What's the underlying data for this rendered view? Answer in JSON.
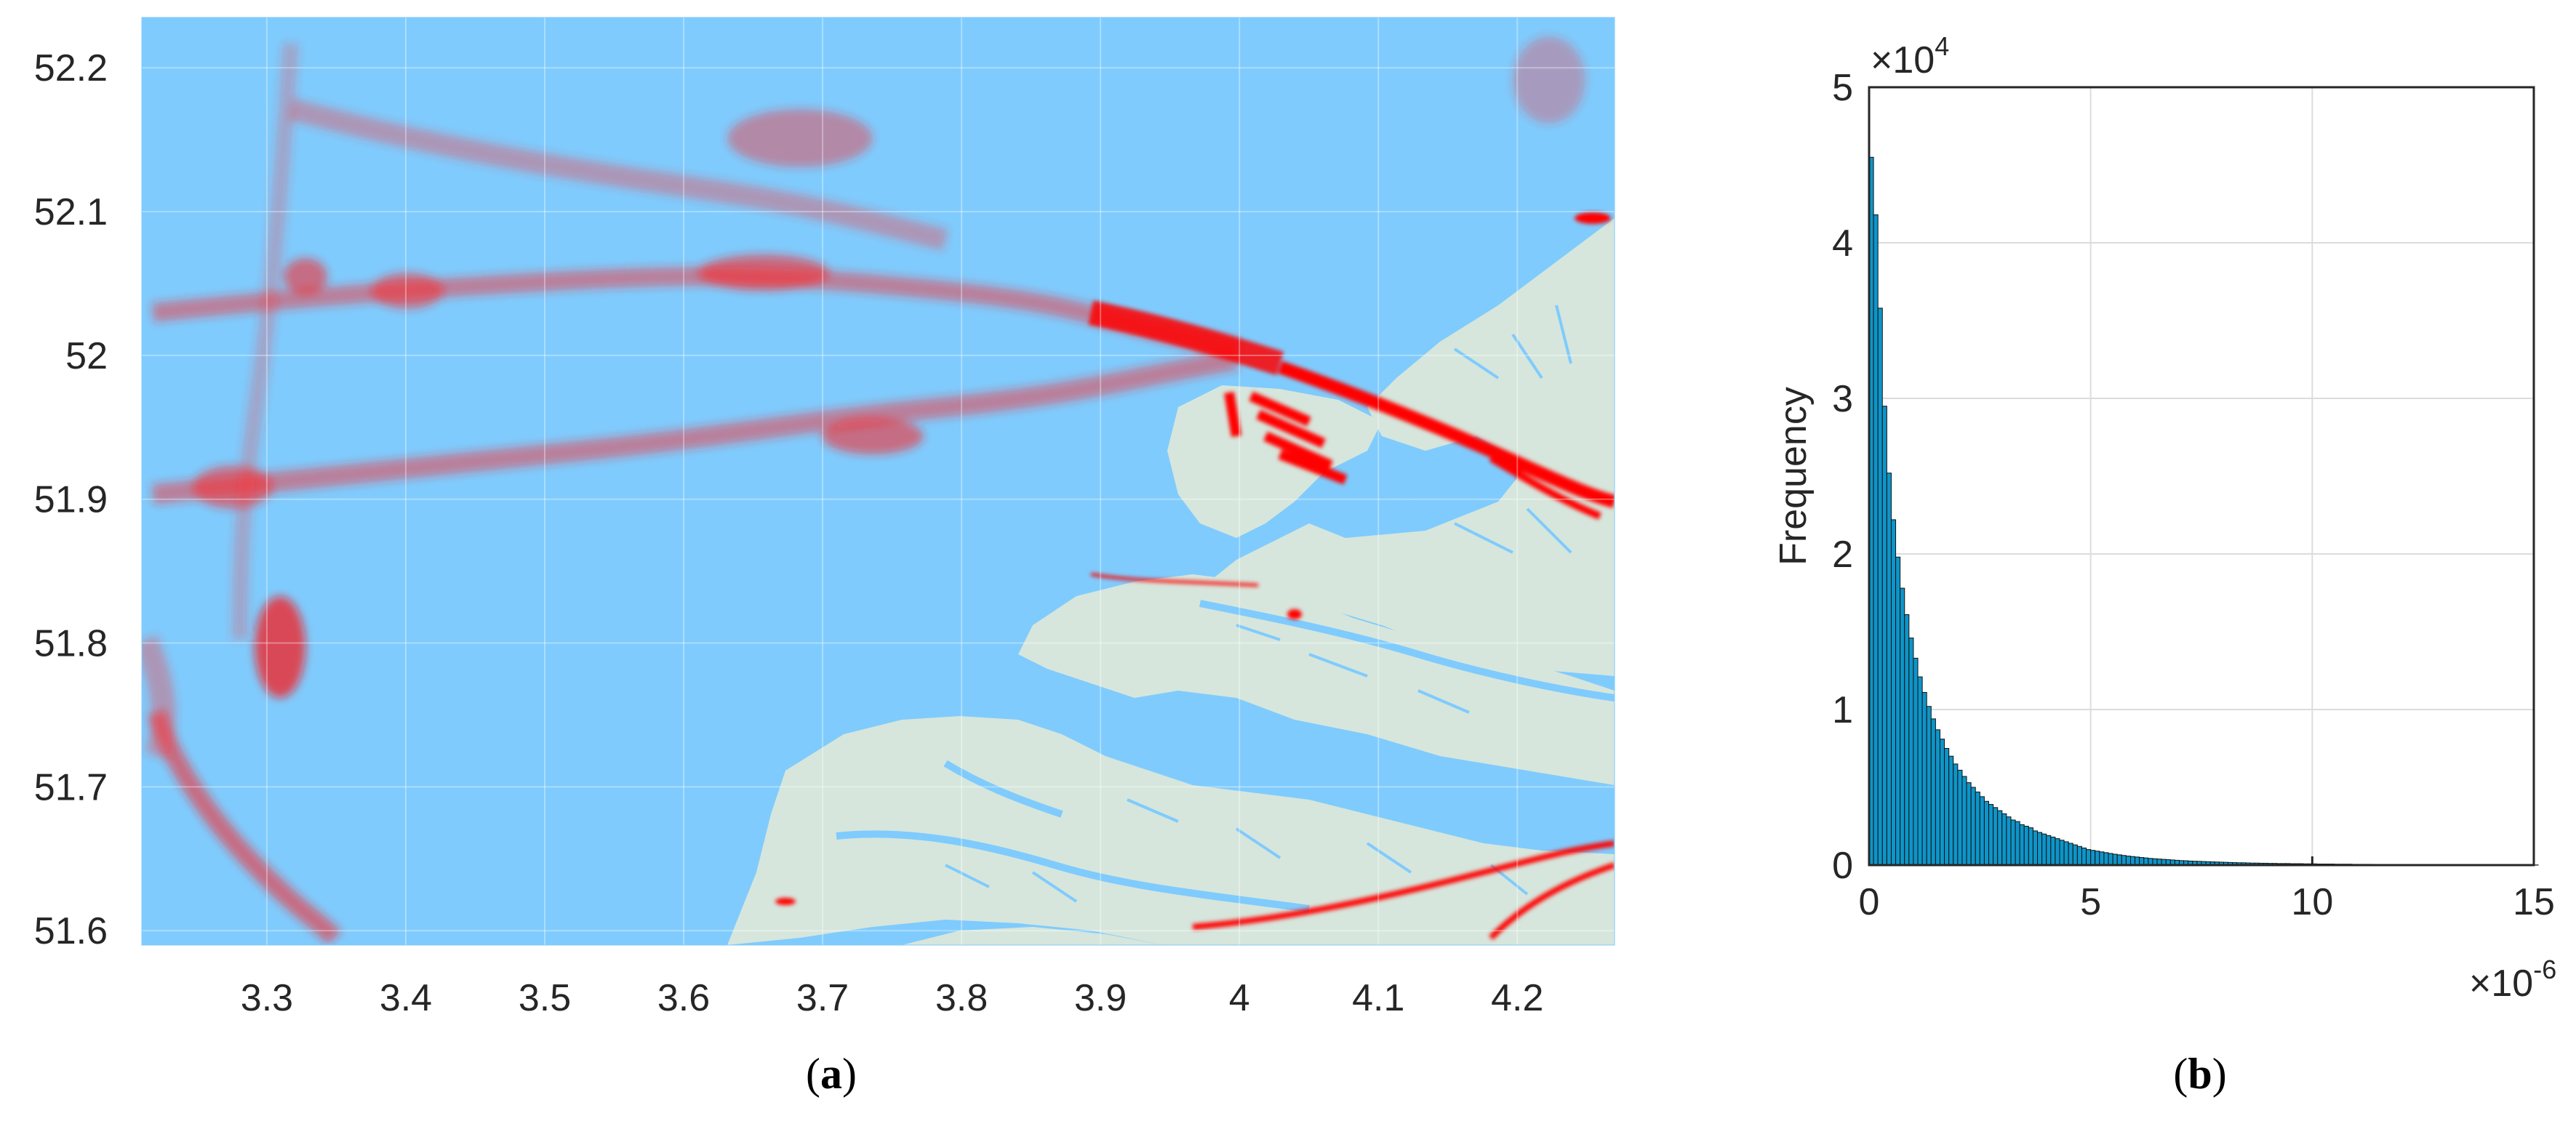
{
  "chart_data": [
    {
      "type": "scatter",
      "title": "",
      "xlabel": "",
      "ylabel": "",
      "xlim": [
        3.21,
        4.27
      ],
      "ylim": [
        51.59,
        52.235
      ],
      "xticks": [
        "3.3",
        "3.4",
        "3.5",
        "3.6",
        "3.7",
        "3.8",
        "3.9",
        "4",
        "4.1",
        "4.2"
      ],
      "yticks": [
        "52.2",
        "52.1",
        "52",
        "51.9",
        "51.8",
        "51.7",
        "51.6"
      ],
      "grid": true,
      "background_color": "#7fcbfd",
      "land_color": "#d6e6dc",
      "point_color": "#ff0000",
      "caption": "(a)",
      "description_series": [
        {
          "points": [
            [
              3.24,
              51.74
            ],
            [
              3.27,
              51.68
            ],
            [
              3.31,
              51.65
            ],
            [
              3.35,
              51.62
            ],
            [
              3.38,
              51.6
            ],
            [
              3.22,
              51.72
            ]
          ]
        },
        {
          "points": [
            [
              3.33,
              51.8
            ],
            [
              3.32,
              51.79
            ],
            [
              3.35,
              51.82
            ],
            [
              3.34,
              51.78
            ]
          ]
        },
        {
          "points": [
            [
              3.3,
              51.91
            ],
            [
              3.4,
              51.92
            ],
            [
              3.5,
              51.93
            ],
            [
              3.6,
              51.94
            ],
            [
              3.7,
              51.96
            ],
            [
              3.8,
              51.97
            ],
            [
              3.9,
              51.99
            ],
            [
              4.0,
              52.0
            ]
          ]
        },
        {
          "points": [
            [
              3.25,
              52.06
            ],
            [
              3.4,
              52.05
            ],
            [
              3.55,
              52.06
            ],
            [
              3.7,
              52.06
            ],
            [
              3.8,
              52.05
            ],
            [
              3.9,
              52.03
            ],
            [
              4.0,
              52.01
            ],
            [
              4.05,
              51.99
            ]
          ]
        },
        {
          "points": [
            [
              3.4,
              52.17
            ],
            [
              3.5,
              52.15
            ],
            [
              3.6,
              52.14
            ],
            [
              3.7,
              52.13
            ],
            [
              3.73,
              52.14
            ]
          ]
        },
        {
          "points": [
            [
              4.05,
              51.98
            ],
            [
              4.1,
              51.96
            ],
            [
              4.15,
              51.94
            ],
            [
              4.2,
              51.92
            ],
            [
              4.25,
              51.9
            ]
          ]
        }
      ]
    },
    {
      "type": "bar",
      "title": "",
      "xlabel": "",
      "ylabel": "Frequency",
      "xlim": [
        0,
        15
      ],
      "ylim": [
        0,
        5
      ],
      "x_multiplier": "×10^-6",
      "y_multiplier": "×10^4",
      "xticks": [
        "0",
        "5",
        "10",
        "15"
      ],
      "yticks": [
        "0",
        "1",
        "2",
        "3",
        "4",
        "5"
      ],
      "grid": true,
      "bar_color": "#0d95c9",
      "bin_width": 0.1,
      "values": [
        4.55,
        4.18,
        3.58,
        2.95,
        2.52,
        2.22,
        1.98,
        1.78,
        1.61,
        1.46,
        1.33,
        1.21,
        1.11,
        1.02,
        0.94,
        0.87,
        0.81,
        0.75,
        0.7,
        0.65,
        0.61,
        0.57,
        0.53,
        0.5,
        0.47,
        0.44,
        0.41,
        0.39,
        0.37,
        0.35,
        0.33,
        0.31,
        0.29,
        0.28,
        0.26,
        0.25,
        0.24,
        0.22,
        0.21,
        0.2,
        0.19,
        0.18,
        0.17,
        0.16,
        0.15,
        0.14,
        0.13,
        0.12,
        0.11,
        0.1,
        0.095,
        0.09,
        0.085,
        0.08,
        0.075,
        0.07,
        0.066,
        0.062,
        0.058,
        0.055,
        0.052,
        0.049,
        0.046,
        0.043,
        0.041,
        0.039,
        0.037,
        0.035,
        0.033,
        0.031,
        0.029,
        0.028,
        0.026,
        0.025,
        0.024,
        0.023,
        0.022,
        0.021,
        0.02,
        0.019,
        0.018,
        0.017,
        0.016,
        0.015,
        0.015,
        0.014,
        0.013,
        0.013,
        0.012,
        0.012,
        0.011,
        0.011,
        0.01,
        0.01,
        0.01,
        0.009,
        0.009,
        0.009,
        0.008,
        0.008,
        0.008,
        0.007,
        0.007,
        0.007,
        0.007,
        0.006,
        0.006,
        0.006,
        0.006,
        0.005,
        0.005,
        0.005,
        0.005,
        0.005,
        0.004,
        0.004,
        0.004,
        0.004,
        0.004,
        0.004,
        0.003,
        0.003,
        0.003,
        0.003,
        0.003,
        0.003,
        0.003,
        0.003,
        0.002,
        0.002,
        0.002,
        0.002,
        0.002,
        0.002,
        0.002,
        0.002,
        0.002,
        0.002,
        0.002,
        0.001,
        0.001,
        0.001,
        0.001,
        0.001,
        0.001,
        0.001,
        0.001,
        0.001,
        0.001,
        0.001,
        0.001
      ],
      "caption": "(b)"
    }
  ]
}
